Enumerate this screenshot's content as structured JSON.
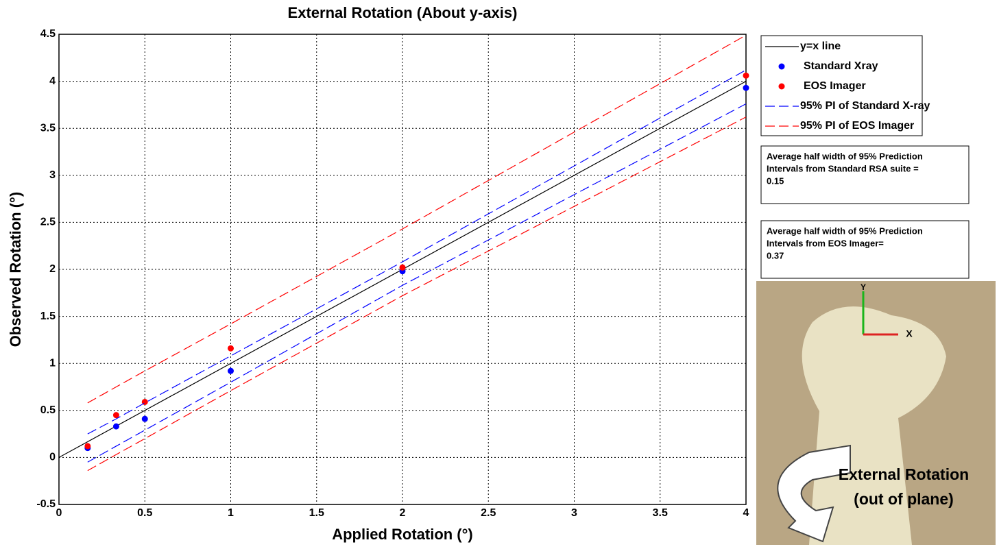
{
  "chart_data": {
    "type": "line",
    "title": "External Rotation (About y-axis)",
    "x_label": "Applied Rotation (°)",
    "y_label": "Observed Rotation (°)",
    "xlim": [
      0,
      4
    ],
    "ylim": [
      -0.5,
      4.5
    ],
    "xticks": [
      0,
      0.5,
      1,
      1.5,
      2,
      2.5,
      3,
      3.5,
      4
    ],
    "yticks": [
      -0.5,
      0,
      0.5,
      1,
      1.5,
      2,
      2.5,
      3,
      3.5,
      4,
      4.5
    ],
    "grid": true,
    "legend": "outside-right",
    "series": [
      {
        "name": "y=x line",
        "style": "solid",
        "color": "#000000",
        "x": [
          0,
          4
        ],
        "values": [
          0,
          4
        ]
      },
      {
        "name": "Standard Xray",
        "style": "marker",
        "color": "#0000ff",
        "x": [
          0.167,
          0.333,
          0.5,
          1,
          2,
          4
        ],
        "values": [
          0.1,
          0.33,
          0.41,
          0.92,
          1.98,
          3.93
        ]
      },
      {
        "name": "EOS Imager",
        "style": "marker",
        "color": "#ff0000",
        "x": [
          0.167,
          0.333,
          0.5,
          1,
          2,
          4
        ],
        "values": [
          0.12,
          0.45,
          0.59,
          1.16,
          2.02,
          4.06
        ]
      },
      {
        "name": "95% PI of Standard X-ray",
        "style": "dashed",
        "color": "#0000ff",
        "x": [
          0.167,
          0.333,
          0.5,
          1,
          2,
          4
        ],
        "values": [
          0.25,
          0.41,
          0.58,
          1.08,
          2.08,
          4.12
        ]
      },
      {
        "name": "95% PI of Standard X-ray",
        "style": "dashed",
        "color": "#0000ff",
        "x": [
          0.167,
          0.333,
          0.5,
          1,
          2,
          4
        ],
        "values": [
          -0.05,
          0.12,
          0.29,
          0.8,
          1.83,
          3.76
        ]
      },
      {
        "name": "95% PI of EOS Imager",
        "style": "dashed",
        "color": "#ff0000",
        "x": [
          0.167,
          0.333,
          0.5,
          1,
          2,
          4
        ],
        "values": [
          0.58,
          0.75,
          0.92,
          1.42,
          2.43,
          4.49
        ]
      },
      {
        "name": "95% PI of EOS Imager",
        "style": "dashed",
        "color": "#ff0000",
        "x": [
          0.167,
          0.333,
          0.5,
          1,
          2,
          4
        ],
        "values": [
          -0.14,
          0.03,
          0.2,
          0.71,
          1.72,
          3.62
        ]
      }
    ],
    "annotations": [
      {
        "lines": [
          "Average half width of 95% Prediction",
          "Intervals from Standard RSA suite =",
          "0.15"
        ]
      },
      {
        "lines": [
          "Average half width of 95% Prediction",
          "Intervals from EOS Imager=",
          "0.37"
        ]
      }
    ],
    "image_caption": [
      "External Rotation",
      "(out of plane)"
    ],
    "image_axes": [
      "Y",
      "X"
    ]
  }
}
